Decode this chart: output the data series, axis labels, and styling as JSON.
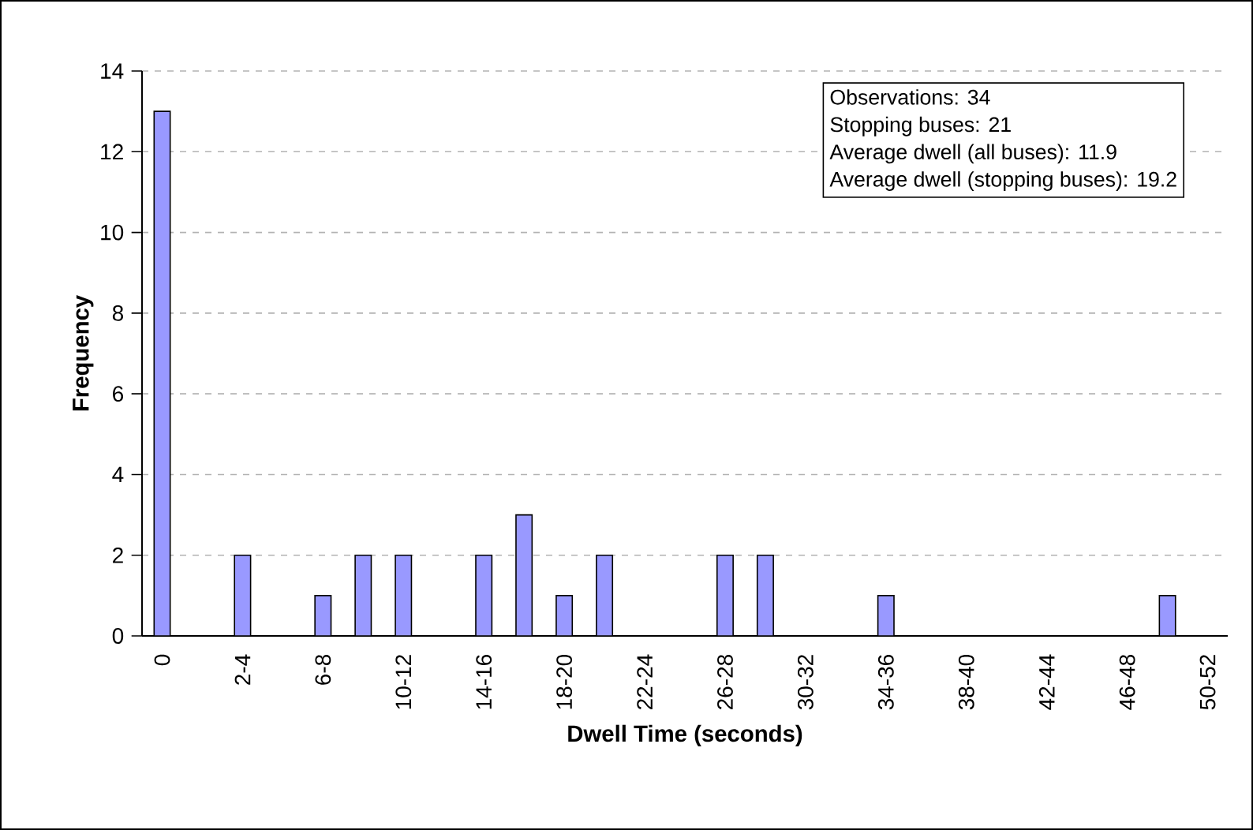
{
  "chart_data": {
    "type": "bar",
    "categories": [
      "0",
      null,
      "2-4",
      null,
      "6-8",
      null,
      "10-12",
      null,
      "14-16",
      null,
      "18-20",
      null,
      "22-24",
      null,
      "26-28",
      null,
      "30-32",
      null,
      "34-36",
      null,
      "38-40",
      null,
      "42-44",
      null,
      "46-48",
      null,
      "50-52"
    ],
    "values": [
      13,
      null,
      2,
      null,
      1,
      2,
      2,
      null,
      2,
      3,
      1,
      2,
      null,
      null,
      2,
      2,
      null,
      null,
      1,
      null,
      null,
      null,
      null,
      null,
      null,
      1,
      null
    ],
    "color": "#9999ff",
    "xlabel": "Dwell Time (seconds)",
    "ylabel": "Frequency",
    "ylim": [
      0,
      14
    ],
    "yticks": [
      0,
      2,
      4,
      6,
      8,
      10,
      12,
      14
    ],
    "grid": "y",
    "annotations": [
      "Observations: 34",
      "Stopping buses: 21",
      "Average dwell (all buses): 11.9",
      "Average dwell (stopping buses): 19.2"
    ]
  }
}
